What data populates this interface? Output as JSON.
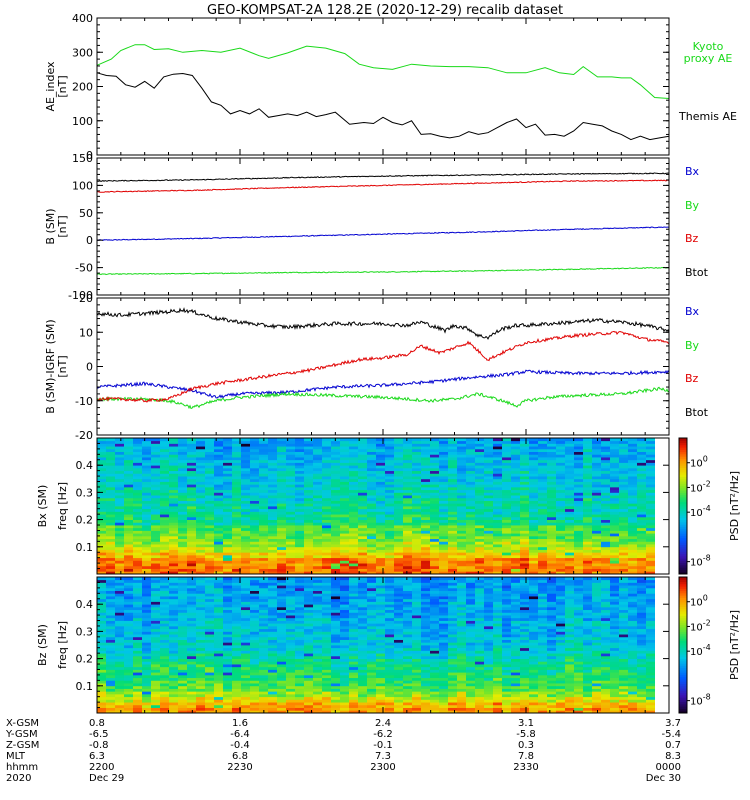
{
  "title": "GEO-KOMPSAT-2A 128.2E (2020-12-29) recalib dataset",
  "colors": {
    "black": "#000000",
    "green": "#19d919",
    "red": "#e00000",
    "blue": "#0000d0",
    "frame": "#000000"
  },
  "chart_data": [
    {
      "type": "line",
      "panel": "ae",
      "ylabel": "AE_index",
      "yunit": "[nT]",
      "ylim": [
        0,
        400
      ],
      "yticks": [
        0,
        100,
        200,
        300,
        400
      ],
      "xlim": [
        0,
        120
      ],
      "series": [
        {
          "name": "Kyoto proxy AE",
          "legend": [
            "Kyoto",
            "proxy AE"
          ],
          "color": "green",
          "x": [
            0,
            3,
            5,
            8,
            10,
            12,
            15,
            18,
            22,
            26,
            30,
            34,
            36,
            40,
            44,
            48,
            52,
            55,
            58,
            62,
            66,
            70,
            74,
            78,
            82,
            86,
            90,
            94,
            97,
            100,
            102,
            105,
            108,
            110,
            112,
            114,
            117,
            120
          ],
          "y": [
            262,
            280,
            305,
            322,
            322,
            308,
            310,
            300,
            305,
            300,
            312,
            290,
            282,
            298,
            318,
            312,
            296,
            265,
            255,
            250,
            265,
            260,
            258,
            258,
            255,
            240,
            240,
            255,
            240,
            235,
            258,
            228,
            228,
            225,
            225,
            205,
            168,
            165
          ]
        },
        {
          "name": "Themis AE",
          "legend": [
            "Themis AE"
          ],
          "color": "black",
          "x": [
            0,
            2,
            4,
            6,
            8,
            10,
            12,
            14,
            16,
            18,
            20,
            22,
            24,
            26,
            28,
            30,
            32,
            34,
            36,
            38,
            40,
            42,
            44,
            46,
            48,
            50,
            53,
            56,
            58,
            60,
            62,
            64,
            66,
            68,
            70,
            72,
            74,
            76,
            78,
            80,
            82,
            84,
            86,
            88,
            90,
            92,
            94,
            96,
            98,
            100,
            102,
            104,
            106,
            108,
            110,
            112,
            114,
            116,
            118,
            120
          ],
          "y": [
            240,
            232,
            230,
            205,
            198,
            215,
            195,
            228,
            236,
            238,
            232,
            195,
            155,
            145,
            120,
            130,
            120,
            135,
            110,
            115,
            120,
            115,
            125,
            112,
            118,
            125,
            90,
            95,
            92,
            110,
            95,
            88,
            100,
            60,
            62,
            55,
            50,
            55,
            68,
            60,
            65,
            80,
            95,
            105,
            80,
            90,
            58,
            60,
            55,
            70,
            95,
            90,
            85,
            70,
            60,
            45,
            55,
            45,
            50,
            55
          ]
        }
      ]
    },
    {
      "type": "line",
      "panel": "bfield",
      "ylabel": "B (SM)",
      "yunit": "[nT]",
      "ylim": [
        -100,
        150
      ],
      "yticks": [
        -100,
        -50,
        0,
        50,
        100,
        150
      ],
      "xlim": [
        0,
        120
      ],
      "series": [
        {
          "name": "Bx",
          "color": "blue",
          "x": [
            0,
            20,
            40,
            60,
            80,
            100,
            120
          ],
          "y": [
            0,
            3,
            7,
            11,
            15,
            20,
            24
          ]
        },
        {
          "name": "By",
          "color": "green",
          "x": [
            0,
            20,
            40,
            60,
            80,
            100,
            120
          ],
          "y": [
            -62,
            -61,
            -59,
            -58,
            -56,
            -53,
            -50
          ]
        },
        {
          "name": "Bz",
          "color": "red",
          "x": [
            0,
            20,
            40,
            60,
            80,
            100,
            120
          ],
          "y": [
            88,
            91,
            96,
            100,
            104,
            108,
            109
          ]
        },
        {
          "name": "Btot",
          "color": "black",
          "x": [
            0,
            20,
            40,
            60,
            80,
            100,
            120
          ],
          "y": [
            108,
            110,
            114,
            117,
            119,
            121,
            122
          ]
        }
      ]
    },
    {
      "type": "line",
      "panel": "bminusigrf",
      "ylabel": "B (SM)-IGRF (SM)",
      "yunit": "[nT]",
      "ylim": [
        -20,
        20
      ],
      "yticks": [
        -20,
        -10,
        0,
        10,
        20
      ],
      "xlim": [
        0,
        120
      ],
      "series": [
        {
          "name": "Bx",
          "color": "blue",
          "x": [
            0,
            5,
            10,
            15,
            20,
            25,
            30,
            40,
            50,
            60,
            70,
            80,
            85,
            90,
            100,
            110,
            120
          ],
          "y": [
            -6,
            -5.5,
            -5,
            -6,
            -7,
            -9,
            -8,
            -7.5,
            -6,
            -5.5,
            -4.5,
            -3,
            -2.5,
            -1.5,
            -2,
            -2,
            -1.5
          ]
        },
        {
          "name": "By",
          "color": "green",
          "x": [
            0,
            5,
            10,
            15,
            18,
            20,
            25,
            30,
            40,
            50,
            60,
            70,
            75,
            80,
            85,
            88,
            90,
            95,
            100,
            110,
            118,
            120
          ],
          "y": [
            -9.5,
            -9.5,
            -9.5,
            -10,
            -11,
            -12,
            -10,
            -9,
            -8,
            -8.5,
            -9,
            -10,
            -9.5,
            -8,
            -10,
            -11.5,
            -10,
            -9,
            -8.5,
            -8,
            -6.5,
            -7
          ]
        },
        {
          "name": "Bz",
          "color": "red",
          "x": [
            0,
            5,
            10,
            15,
            20,
            25,
            30,
            35,
            40,
            45,
            50,
            55,
            60,
            65,
            68,
            72,
            75,
            78,
            82,
            85,
            90,
            95,
            100,
            105,
            110,
            115,
            120
          ],
          "y": [
            -9.5,
            -9.5,
            -10,
            -9.5,
            -6.5,
            -5,
            -4,
            -3,
            -2,
            -1,
            0.5,
            2,
            2.5,
            3.5,
            6,
            4,
            5.5,
            7,
            2,
            4,
            7,
            8,
            9,
            9.5,
            10,
            8,
            7
          ]
        },
        {
          "name": "Btot",
          "color": "black",
          "x": [
            0,
            5,
            10,
            15,
            18,
            20,
            25,
            30,
            35,
            40,
            45,
            50,
            55,
            60,
            65,
            68,
            70,
            73,
            75,
            78,
            80,
            82,
            85,
            88,
            90,
            95,
            100,
            105,
            110,
            115,
            120
          ],
          "y": [
            15.5,
            15,
            15.5,
            16,
            16.5,
            16,
            14,
            13,
            12,
            11.5,
            12,
            12.5,
            12.5,
            12.5,
            12,
            13,
            12,
            10.5,
            12,
            11,
            9,
            8.5,
            11,
            12,
            12,
            12.5,
            13,
            13.5,
            13,
            12,
            10.5
          ]
        }
      ]
    },
    {
      "type": "heatmap",
      "panel": "bx-spectrogram",
      "ylabel": "Bx (SM)",
      "ysublabel": "freq [Hz]",
      "yticks": [
        0.1,
        0.2,
        0.3,
        0.4
      ],
      "ylim": [
        0,
        0.5
      ],
      "colorbar": {
        "label": "PSD [nT²/Hz]",
        "ticks": [
          {
            "base": "10",
            "exp": "0"
          },
          {
            "base": "10",
            "exp": "-2"
          },
          {
            "base": "10",
            "exp": "-4"
          },
          {
            "base": "10",
            "exp": "-8"
          }
        ]
      },
      "profile_log_psd": [
        0.5,
        0.5,
        0.3,
        -0.5,
        -1.2,
        -1.8,
        -2.2,
        -2.4,
        -2.5,
        -3.4,
        -3.5,
        -3.8,
        -3.6,
        -3.9,
        -4.0,
        -4.1,
        -4.3,
        -4.4,
        -4.3,
        -4.5,
        -4.6,
        -4.7,
        -4.7,
        -4.9,
        -5.0
      ]
    },
    {
      "type": "heatmap",
      "panel": "bz-spectrogram",
      "ylabel": "Bz (SM)",
      "ysublabel": "freq [Hz]",
      "yticks": [
        0.1,
        0.2,
        0.3,
        0.4
      ],
      "ylim": [
        0,
        0.5
      ],
      "colorbar": {
        "label": "PSD [nT²/Hz]",
        "ticks": [
          {
            "base": "10",
            "exp": "0"
          },
          {
            "base": "10",
            "exp": "-2"
          },
          {
            "base": "10",
            "exp": "-4"
          },
          {
            "base": "10",
            "exp": "-8"
          }
        ]
      },
      "profile_log_psd": [
        0.0,
        -0.4,
        -1.2,
        -2.0,
        -2.6,
        -2.9,
        -3.1,
        -3.3,
        -3.4,
        -3.7,
        -4.0,
        -4.4,
        -4.5,
        -4.6,
        -4.7,
        -4.8,
        -4.8,
        -4.9,
        -5.0,
        -5.0,
        -5.1,
        -5.2,
        -5.2,
        -5.3,
        -5.4
      ]
    }
  ],
  "orbit": {
    "row_labels": [
      "X-GSM",
      "Y-GSM",
      "Z-GSM",
      "MLT",
      "hhmm",
      "2020"
    ],
    "columns": [
      {
        "t": 0,
        "values": [
          "0.8",
          "-6.5",
          "-0.8",
          "6.3",
          "2200",
          "Dec 29"
        ]
      },
      {
        "t": 30,
        "values": [
          "1.6",
          "-6.4",
          "-0.4",
          "6.8",
          "2230",
          ""
        ]
      },
      {
        "t": 60,
        "values": [
          "2.4",
          "-6.2",
          "-0.1",
          "7.3",
          "2300",
          ""
        ]
      },
      {
        "t": 90,
        "values": [
          "3.1",
          "-5.8",
          "0.3",
          "7.8",
          "2330",
          ""
        ]
      },
      {
        "t": 120,
        "values": [
          "3.7",
          "-5.4",
          "0.7",
          "8.3",
          "0000",
          "Dec 30"
        ]
      }
    ]
  }
}
